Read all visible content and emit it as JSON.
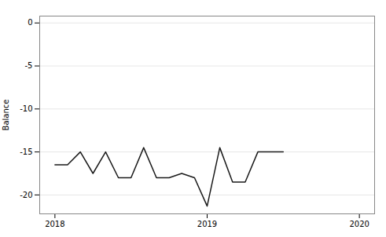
{
  "chart_data": {
    "type": "line",
    "x": [
      2018.0,
      2018.083,
      2018.167,
      2018.25,
      2018.333,
      2018.417,
      2018.5,
      2018.583,
      2018.667,
      2018.75,
      2018.833,
      2018.917,
      2019.0,
      2019.083,
      2019.167,
      2019.25,
      2019.333,
      2019.417,
      2019.5
    ],
    "values": [
      -16.5,
      -16.5,
      -15.0,
      -17.5,
      -15.0,
      -18.0,
      -18.0,
      -14.5,
      -18.0,
      -18.0,
      -17.5,
      -18.0,
      -21.3,
      -14.5,
      -18.5,
      -18.5,
      -15.0,
      -15.0,
      -15.0
    ],
    "color": "#1a1a1a",
    "xlim": [
      2017.9,
      2020.1
    ],
    "xticks": [
      2018,
      2019,
      2020
    ],
    "ylim": [
      -22.2,
      0.8
    ],
    "yticks": [
      0,
      -5,
      -10,
      -15,
      -20
    ],
    "ylabel": "Balance",
    "grid": "y"
  }
}
